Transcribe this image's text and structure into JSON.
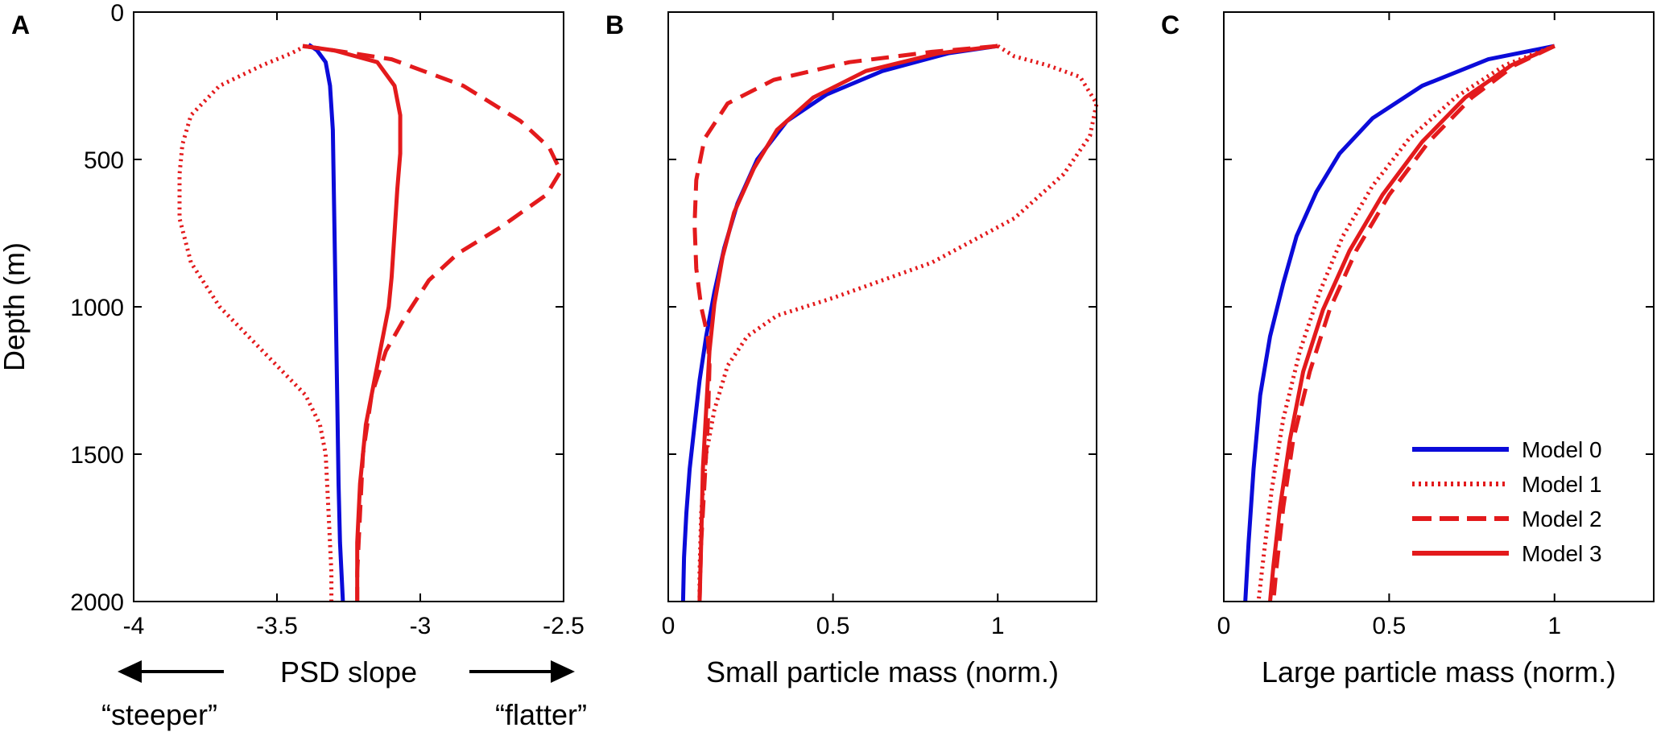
{
  "chart_data": [
    {
      "panel": "A",
      "type": "line",
      "xlabel": "PSD slope",
      "ylabel": "Depth (m)",
      "xlim": [
        -4,
        -2.5
      ],
      "ylim": [
        0,
        2000
      ],
      "y_reversed": true,
      "xticks": [
        -4,
        -3.5,
        -3,
        -2.5
      ],
      "xtick_labels": [
        "-4",
        "-3.5",
        "-3",
        "-2.5"
      ],
      "yticks": [
        0,
        500,
        1000,
        1500,
        2000
      ],
      "ytick_labels": [
        "0",
        "500",
        "1000",
        "1500",
        "2000"
      ],
      "annotations": {
        "left": "“steeper”",
        "right": "“flatter”"
      },
      "series": [
        {
          "name": "Model 0",
          "style": "solid",
          "color": "#0b0bd9",
          "x": [
            -3.39,
            -3.36,
            -3.33,
            -3.315,
            -3.305,
            -3.3,
            -3.295,
            -3.29,
            -3.285,
            -3.28,
            -3.27
          ],
          "depth": [
            110,
            130,
            170,
            250,
            400,
            700,
            1000,
            1300,
            1600,
            1800,
            2000
          ]
        },
        {
          "name": "Model 1",
          "style": "dotted",
          "color": "#e31a1c",
          "x": [
            -3.4,
            -3.45,
            -3.55,
            -3.7,
            -3.8,
            -3.83,
            -3.84,
            -3.84,
            -3.8,
            -3.7,
            -3.6,
            -3.5,
            -3.4,
            -3.35,
            -3.33,
            -3.32,
            -3.31,
            -3.31
          ],
          "depth": [
            115,
            140,
            180,
            250,
            350,
            450,
            550,
            700,
            850,
            1000,
            1100,
            1200,
            1300,
            1400,
            1500,
            1700,
            1900,
            2000
          ]
        },
        {
          "name": "Model 2",
          "style": "dashed",
          "color": "#e31a1c",
          "x": [
            -3.41,
            -3.3,
            -3.1,
            -2.85,
            -2.65,
            -2.55,
            -2.51,
            -2.56,
            -2.72,
            -2.87,
            -2.97,
            -3.05,
            -3.12,
            -3.17,
            -3.2,
            -3.21,
            -3.22,
            -3.22
          ],
          "depth": [
            115,
            130,
            160,
            250,
            370,
            460,
            540,
            620,
            730,
            820,
            910,
            1030,
            1150,
            1300,
            1500,
            1700,
            1900,
            2000
          ]
        },
        {
          "name": "Model 3",
          "style": "solid",
          "color": "#e31a1c",
          "x": [
            -3.41,
            -3.3,
            -3.15,
            -3.09,
            -3.07,
            -3.07,
            -3.08,
            -3.09,
            -3.1,
            -3.11,
            -3.13,
            -3.16,
            -3.19,
            -3.21,
            -3.22,
            -3.22
          ],
          "depth": [
            115,
            130,
            170,
            250,
            350,
            480,
            600,
            750,
            900,
            1000,
            1100,
            1250,
            1400,
            1600,
            1800,
            2000
          ]
        }
      ]
    },
    {
      "panel": "B",
      "type": "line",
      "xlabel": "Small particle mass (norm.)",
      "ylabel": "",
      "xlim": [
        0,
        1.3
      ],
      "ylim": [
        0,
        2000
      ],
      "y_reversed": true,
      "xticks": [
        0,
        0.5,
        1
      ],
      "xtick_labels": [
        "0",
        "0.5",
        "1"
      ],
      "yticks": [
        0,
        500,
        1000,
        1500,
        2000
      ],
      "ytick_labels": [],
      "series": [
        {
          "name": "Model 0",
          "style": "solid",
          "color": "#0b0bd9",
          "x": [
            1.0,
            0.85,
            0.65,
            0.48,
            0.36,
            0.27,
            0.21,
            0.17,
            0.14,
            0.115,
            0.095,
            0.08,
            0.065,
            0.055,
            0.048,
            0.045
          ],
          "depth": [
            115,
            140,
            200,
            280,
            370,
            500,
            650,
            800,
            950,
            1100,
            1250,
            1400,
            1550,
            1700,
            1850,
            2000
          ]
        },
        {
          "name": "Model 1",
          "style": "dotted",
          "color": "#e31a1c",
          "x": [
            1.0,
            1.05,
            1.15,
            1.25,
            1.3,
            1.28,
            1.2,
            1.05,
            0.8,
            0.5,
            0.33,
            0.24,
            0.18,
            0.14,
            0.115,
            0.1,
            0.095,
            0.095
          ],
          "depth": [
            115,
            150,
            180,
            220,
            310,
            420,
            550,
            700,
            850,
            970,
            1030,
            1100,
            1200,
            1350,
            1500,
            1700,
            1900,
            2000
          ]
        },
        {
          "name": "Model 2",
          "style": "dashed",
          "color": "#e31a1c",
          "x": [
            1.0,
            0.8,
            0.55,
            0.32,
            0.18,
            0.11,
            0.085,
            0.08,
            0.085,
            0.1,
            0.12,
            0.125,
            0.12,
            0.11,
            0.1,
            0.095
          ],
          "depth": [
            115,
            135,
            170,
            230,
            310,
            430,
            570,
            720,
            870,
            1000,
            1100,
            1200,
            1400,
            1600,
            1800,
            2000
          ]
        },
        {
          "name": "Model 3",
          "style": "solid",
          "color": "#e31a1c",
          "x": [
            1.0,
            0.82,
            0.6,
            0.44,
            0.33,
            0.26,
            0.2,
            0.165,
            0.14,
            0.125,
            0.115,
            0.105,
            0.1,
            0.095
          ],
          "depth": [
            115,
            140,
            200,
            290,
            400,
            530,
            680,
            830,
            990,
            1150,
            1350,
            1550,
            1800,
            2000
          ]
        }
      ]
    },
    {
      "panel": "C",
      "type": "line",
      "xlabel": "Large particle mass (norm.)",
      "ylabel": "",
      "xlim": [
        0,
        1.3
      ],
      "ylim": [
        0,
        2000
      ],
      "y_reversed": true,
      "xticks": [
        0,
        0.5,
        1
      ],
      "xtick_labels": [
        "0",
        "0.5",
        "1"
      ],
      "yticks": [
        0,
        500,
        1000,
        1500,
        2000
      ],
      "ytick_labels": [],
      "legend": {
        "location": "lower-right",
        "entries": [
          "Model 0",
          "Model 1",
          "Model 2",
          "Model 3"
        ]
      },
      "series": [
        {
          "name": "Model 0",
          "style": "solid",
          "color": "#0b0bd9",
          "x": [
            1.0,
            0.8,
            0.6,
            0.45,
            0.35,
            0.28,
            0.22,
            0.18,
            0.14,
            0.11,
            0.09,
            0.075,
            0.065
          ],
          "depth": [
            115,
            160,
            250,
            360,
            480,
            610,
            760,
            920,
            1100,
            1300,
            1550,
            1800,
            2000
          ]
        },
        {
          "name": "Model 1",
          "style": "dotted",
          "color": "#e31a1c",
          "x": [
            1.0,
            0.85,
            0.7,
            0.56,
            0.45,
            0.36,
            0.29,
            0.23,
            0.18,
            0.145,
            0.12,
            0.105
          ],
          "depth": [
            115,
            180,
            290,
            430,
            590,
            760,
            950,
            1150,
            1380,
            1620,
            1850,
            2000
          ]
        },
        {
          "name": "Model 2",
          "style": "dashed",
          "color": "#e31a1c",
          "x": [
            1.0,
            0.88,
            0.75,
            0.62,
            0.5,
            0.4,
            0.32,
            0.26,
            0.21,
            0.18,
            0.16,
            0.15
          ],
          "depth": [
            115,
            180,
            290,
            440,
            620,
            810,
            1010,
            1220,
            1450,
            1680,
            1880,
            2000
          ]
        },
        {
          "name": "Model 3",
          "style": "solid",
          "color": "#e31a1c",
          "x": [
            1.0,
            0.87,
            0.73,
            0.6,
            0.48,
            0.38,
            0.3,
            0.24,
            0.2,
            0.17,
            0.15,
            0.14
          ],
          "depth": [
            115,
            180,
            290,
            440,
            620,
            810,
            1010,
            1220,
            1450,
            1680,
            1880,
            2000
          ]
        }
      ]
    }
  ]
}
